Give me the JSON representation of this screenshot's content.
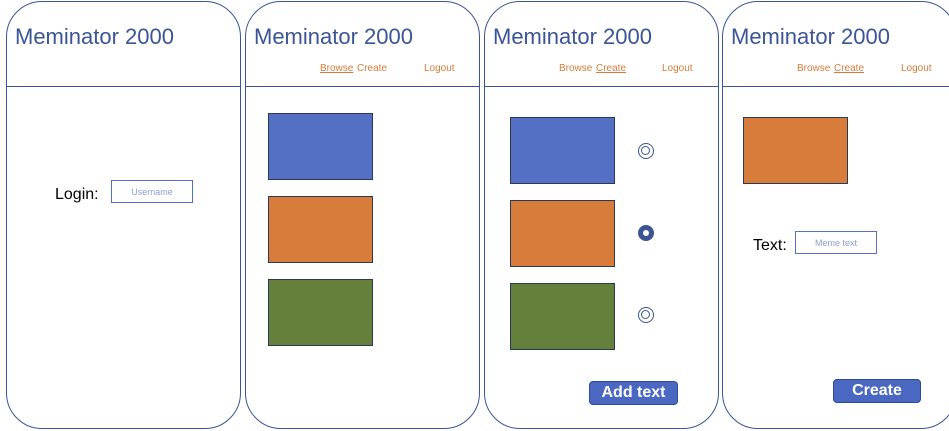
{
  "app": {
    "title": "Meminator 2000"
  },
  "nav": {
    "browse": "Browse",
    "create": "Create",
    "logout": "Logout"
  },
  "login_screen": {
    "label": "Login:",
    "username_placeholder": "Username"
  },
  "select_screen": {
    "add_text_button": "Add text",
    "selected_index": 1
  },
  "create_screen": {
    "label": "Text:",
    "meme_text_placeholder": "Meme text",
    "create_button": "Create"
  },
  "colors": {
    "frame": "#3b5496",
    "image_blue": "#5470c5",
    "image_orange": "#d77c3b",
    "image_green": "#65803b",
    "nav_link": "#d77c3b",
    "button": "#4a68c1"
  }
}
